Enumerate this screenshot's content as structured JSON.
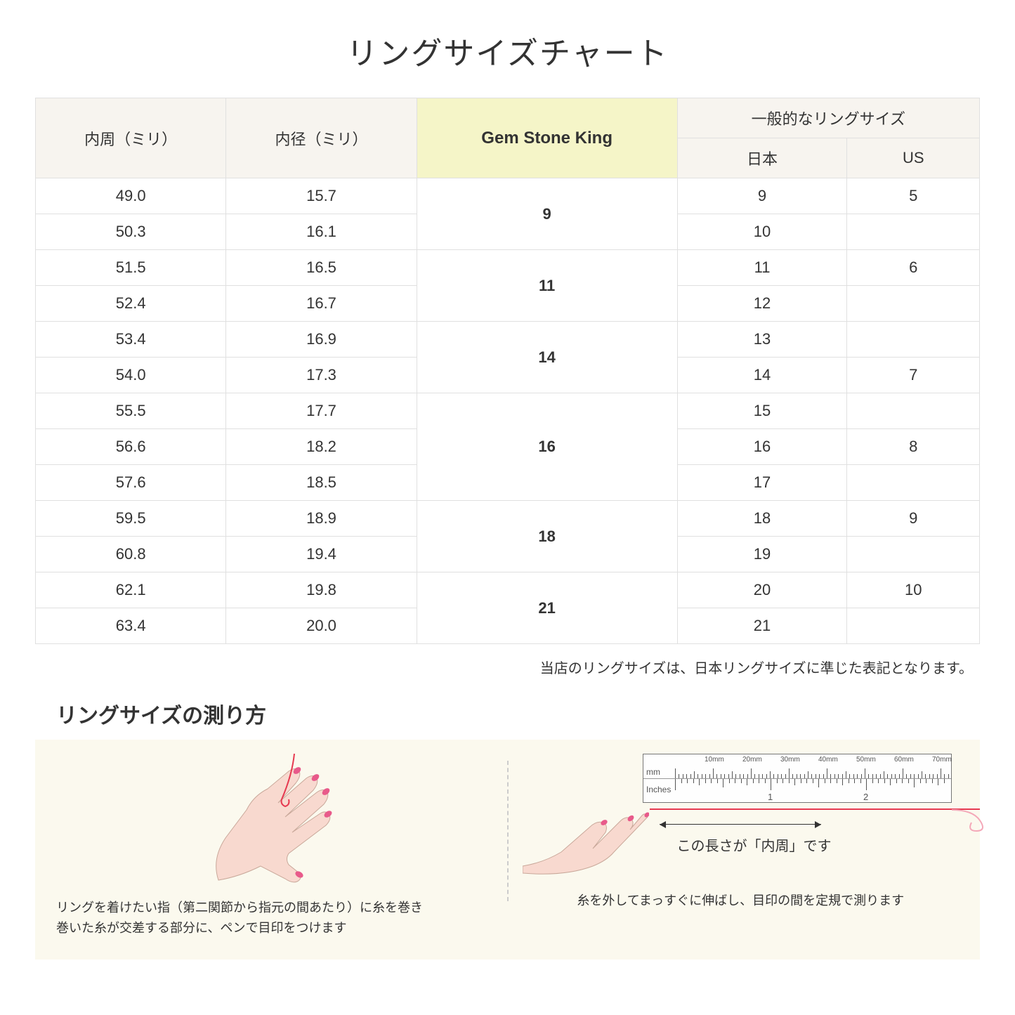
{
  "title": "リングサイズチャート",
  "table": {
    "headers": {
      "circumference": "内周（ミリ）",
      "diameter": "内径（ミリ）",
      "brand": "Gem Stone King",
      "general_group": "一般的なリングサイズ",
      "japan": "日本",
      "us": "US"
    },
    "groups": [
      {
        "gsk": "9",
        "rows": [
          {
            "circ": "49.0",
            "dia": "15.7",
            "jp": "9",
            "us": "5"
          },
          {
            "circ": "50.3",
            "dia": "16.1",
            "jp": "10",
            "us": ""
          }
        ]
      },
      {
        "gsk": "11",
        "rows": [
          {
            "circ": "51.5",
            "dia": "16.5",
            "jp": "11",
            "us": "6"
          },
          {
            "circ": "52.4",
            "dia": "16.7",
            "jp": "12",
            "us": ""
          }
        ]
      },
      {
        "gsk": "14",
        "rows": [
          {
            "circ": "53.4",
            "dia": "16.9",
            "jp": "13",
            "us": ""
          },
          {
            "circ": "54.0",
            "dia": "17.3",
            "jp": "14",
            "us": "7"
          }
        ]
      },
      {
        "gsk": "16",
        "rows": [
          {
            "circ": "55.5",
            "dia": "17.7",
            "jp": "15",
            "us": ""
          },
          {
            "circ": "56.6",
            "dia": "18.2",
            "jp": "16",
            "us": "8"
          },
          {
            "circ": "57.6",
            "dia": "18.5",
            "jp": "17",
            "us": ""
          }
        ]
      },
      {
        "gsk": "18",
        "rows": [
          {
            "circ": "59.5",
            "dia": "18.9",
            "jp": "18",
            "us": "9"
          },
          {
            "circ": "60.8",
            "dia": "19.4",
            "jp": "19",
            "us": ""
          }
        ]
      },
      {
        "gsk": "21",
        "rows": [
          {
            "circ": "62.1",
            "dia": "19.8",
            "jp": "20",
            "us": "10"
          },
          {
            "circ": "63.4",
            "dia": "20.0",
            "jp": "21",
            "us": ""
          }
        ]
      }
    ]
  },
  "note": "当店のリングサイズは、日本リングサイズに準じた表記となります。",
  "subtitle": "リングサイズの測り方",
  "instructions": {
    "left": "リングを着けたい指（第二関節から指元の間あたり）に糸を巻き\n巻いた糸が交差する部分に、ペンで目印をつけます",
    "right": "糸を外してまっすぐに伸ばし、目印の間を定規で測ります",
    "measure_label": "この長さが「内周」です"
  },
  "ruler": {
    "mm_label": "mm",
    "inches_label": "Inches",
    "mm_ticks": [
      "10mm",
      "20mm",
      "30mm",
      "40mm",
      "50mm",
      "60mm",
      "70mm"
    ],
    "inch_labels": [
      "1",
      "2"
    ]
  },
  "colors": {
    "header_bg": "#f7f4ef",
    "highlight_bg": "#f5f5c8",
    "instruction_bg": "#fbf9ee",
    "thread": "#e63950",
    "skin": "#f8d9cf",
    "nail": "#e85a8a",
    "border": "#e0e0e0"
  }
}
